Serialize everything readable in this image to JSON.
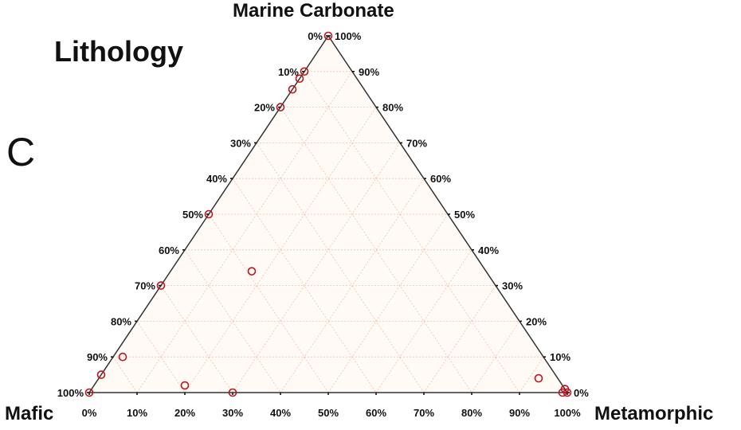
{
  "chart_data": {
    "type": "scatter",
    "subtype": "ternary",
    "panel_label": "C",
    "title": "Lithology",
    "axes": {
      "top": "Marine Carbonate",
      "left": "Mafic",
      "right": "Metamorphic"
    },
    "tick_labels": [
      "0%",
      "10%",
      "20%",
      "30%",
      "40%",
      "50%",
      "60%",
      "70%",
      "80%",
      "90%",
      "100%"
    ],
    "grid": true,
    "colors": {
      "grid": "#f4c0a8",
      "fill": "#fffaf6",
      "frame": "#333333",
      "marker": "#c0141c"
    },
    "points_note": "each point is [Mafic %, Marine Carbonate %, Metamorphic %]",
    "points": [
      [
        0,
        100,
        0
      ],
      [
        10,
        90,
        0
      ],
      [
        12,
        88,
        0
      ],
      [
        15,
        85,
        0
      ],
      [
        20,
        80,
        0
      ],
      [
        50,
        50,
        0
      ],
      [
        70,
        30,
        0
      ],
      [
        95,
        5,
        0
      ],
      [
        100,
        0,
        0
      ],
      [
        49,
        34,
        17
      ],
      [
        88,
        10,
        2
      ],
      [
        79,
        2,
        19
      ],
      [
        70,
        0,
        30
      ],
      [
        4,
        4,
        92
      ],
      [
        1,
        0,
        99
      ],
      [
        0,
        1,
        99
      ],
      [
        0,
        0,
        100
      ]
    ]
  }
}
